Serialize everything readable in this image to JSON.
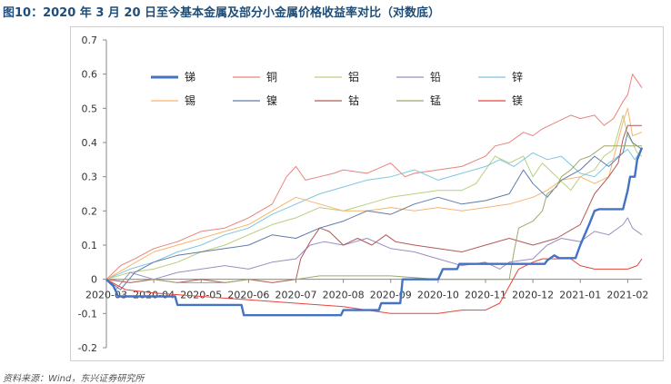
{
  "title": "图10：2020 年 3 月 20 日至今基本金属及部分小金属价格收益率对比（对数底）",
  "source": "资料来源：Wind，东兴证券研究所",
  "chart_data": {
    "type": "line",
    "ylim": [
      -0.2,
      0.7
    ],
    "yticks": [
      "-0.2",
      "-0.1",
      "0",
      "0.1",
      "0.2",
      "0.3",
      "0.4",
      "0.5",
      "0.6",
      "0.7"
    ],
    "xticks": [
      "2020-03",
      "2020-04",
      "2020-05",
      "2020-06",
      "2020-07",
      "2020-08",
      "2020-09",
      "2020-10",
      "2020-11",
      "2020-12",
      "2021-01",
      "2021-02"
    ],
    "x_months": [
      0,
      1,
      2,
      3,
      4,
      5,
      6,
      7,
      8,
      9,
      10,
      11
    ],
    "x_end": 11.3,
    "grid": false,
    "legend_position": "top-left",
    "series": [
      {
        "name": "锑",
        "color": "#4472c4",
        "width": 2.4,
        "points": [
          [
            0.0,
            0
          ],
          [
            0.15,
            -0.02
          ],
          [
            0.25,
            -0.05
          ],
          [
            1.45,
            -0.05
          ],
          [
            1.5,
            -0.075
          ],
          [
            2.85,
            -0.075
          ],
          [
            2.9,
            -0.105
          ],
          [
            4.95,
            -0.105
          ],
          [
            5.0,
            -0.09
          ],
          [
            5.75,
            -0.09
          ],
          [
            5.8,
            -0.07
          ],
          [
            6.2,
            -0.07
          ],
          [
            6.25,
            0
          ],
          [
            7.0,
            0
          ],
          [
            7.1,
            0.03
          ],
          [
            7.4,
            0.03
          ],
          [
            7.45,
            0.045
          ],
          [
            9.25,
            0.045
          ],
          [
            9.3,
            0.055
          ],
          [
            9.45,
            0.07
          ],
          [
            9.55,
            0.062
          ],
          [
            9.9,
            0.062
          ],
          [
            10.0,
            0.1
          ],
          [
            10.2,
            0.165
          ],
          [
            10.3,
            0.2
          ],
          [
            10.4,
            0.205
          ],
          [
            10.9,
            0.205
          ],
          [
            11.0,
            0.26
          ],
          [
            11.05,
            0.3
          ],
          [
            11.15,
            0.3
          ],
          [
            11.2,
            0.35
          ],
          [
            11.3,
            0.385
          ]
        ]
      },
      {
        "name": "铜",
        "color": "#e8837c",
        "width": 1,
        "points": [
          [
            0.0,
            0
          ],
          [
            0.3,
            0.04
          ],
          [
            0.6,
            0.06
          ],
          [
            1.0,
            0.09
          ],
          [
            1.5,
            0.11
          ],
          [
            2.0,
            0.14
          ],
          [
            2.5,
            0.15
          ],
          [
            3.0,
            0.18
          ],
          [
            3.5,
            0.22
          ],
          [
            3.8,
            0.3
          ],
          [
            4.0,
            0.33
          ],
          [
            4.2,
            0.29
          ],
          [
            4.5,
            0.3
          ],
          [
            4.8,
            0.31
          ],
          [
            5.0,
            0.32
          ],
          [
            5.5,
            0.31
          ],
          [
            6.0,
            0.34
          ],
          [
            6.3,
            0.3
          ],
          [
            6.5,
            0.31
          ],
          [
            7.0,
            0.32
          ],
          [
            7.5,
            0.33
          ],
          [
            8.0,
            0.36
          ],
          [
            8.2,
            0.39
          ],
          [
            8.5,
            0.4
          ],
          [
            8.8,
            0.43
          ],
          [
            9.0,
            0.42
          ],
          [
            9.2,
            0.44
          ],
          [
            9.5,
            0.46
          ],
          [
            9.8,
            0.48
          ],
          [
            10.0,
            0.47
          ],
          [
            10.3,
            0.48
          ],
          [
            10.5,
            0.45
          ],
          [
            10.7,
            0.47
          ],
          [
            10.9,
            0.52
          ],
          [
            11.0,
            0.54
          ],
          [
            11.1,
            0.6
          ],
          [
            11.2,
            0.58
          ],
          [
            11.3,
            0.56
          ]
        ]
      },
      {
        "name": "铝",
        "color": "#b7cf7e",
        "width": 1,
        "points": [
          [
            0.0,
            0
          ],
          [
            0.5,
            0.02
          ],
          [
            1.0,
            0.03
          ],
          [
            1.5,
            0.05
          ],
          [
            2.0,
            0.08
          ],
          [
            2.5,
            0.1
          ],
          [
            3.0,
            0.13
          ],
          [
            3.5,
            0.16
          ],
          [
            4.0,
            0.18
          ],
          [
            4.5,
            0.21
          ],
          [
            5.0,
            0.2
          ],
          [
            5.5,
            0.22
          ],
          [
            6.0,
            0.24
          ],
          [
            6.5,
            0.25
          ],
          [
            7.0,
            0.26
          ],
          [
            7.5,
            0.26
          ],
          [
            7.8,
            0.28
          ],
          [
            8.0,
            0.32
          ],
          [
            8.2,
            0.36
          ],
          [
            8.5,
            0.34
          ],
          [
            8.8,
            0.36
          ],
          [
            9.0,
            0.3
          ],
          [
            9.2,
            0.34
          ],
          [
            9.5,
            0.3
          ],
          [
            9.8,
            0.26
          ],
          [
            10.0,
            0.3
          ],
          [
            10.3,
            0.32
          ],
          [
            10.5,
            0.36
          ],
          [
            10.7,
            0.38
          ],
          [
            10.9,
            0.48
          ],
          [
            11.0,
            0.42
          ],
          [
            11.1,
            0.4
          ],
          [
            11.2,
            0.37
          ],
          [
            11.3,
            0.36
          ]
        ]
      },
      {
        "name": "铅",
        "color": "#9a8ec1",
        "width": 1,
        "points": [
          [
            0.0,
            0
          ],
          [
            0.2,
            -0.03
          ],
          [
            0.5,
            0.02
          ],
          [
            1.0,
            0.0
          ],
          [
            1.5,
            0.02
          ],
          [
            2.0,
            0.03
          ],
          [
            2.5,
            0.04
          ],
          [
            3.0,
            0.03
          ],
          [
            3.5,
            0.05
          ],
          [
            4.0,
            0.06
          ],
          [
            4.3,
            0.1
          ],
          [
            4.6,
            0.11
          ],
          [
            5.0,
            0.1
          ],
          [
            5.5,
            0.12
          ],
          [
            6.0,
            0.09
          ],
          [
            6.5,
            0.08
          ],
          [
            7.0,
            0.06
          ],
          [
            7.5,
            0.04
          ],
          [
            8.0,
            0.05
          ],
          [
            8.3,
            0.03
          ],
          [
            8.5,
            0.05
          ],
          [
            9.0,
            0.06
          ],
          [
            9.3,
            0.1
          ],
          [
            9.6,
            0.12
          ],
          [
            10.0,
            0.11
          ],
          [
            10.3,
            0.14
          ],
          [
            10.6,
            0.13
          ],
          [
            10.9,
            0.16
          ],
          [
            11.0,
            0.18
          ],
          [
            11.1,
            0.15
          ],
          [
            11.3,
            0.13
          ]
        ]
      },
      {
        "name": "锌",
        "color": "#7ec6e0",
        "width": 1,
        "points": [
          [
            0.0,
            0
          ],
          [
            0.5,
            0.03
          ],
          [
            1.0,
            0.05
          ],
          [
            1.5,
            0.08
          ],
          [
            2.0,
            0.1
          ],
          [
            2.5,
            0.13
          ],
          [
            3.0,
            0.15
          ],
          [
            3.5,
            0.19
          ],
          [
            4.0,
            0.22
          ],
          [
            4.5,
            0.25
          ],
          [
            5.0,
            0.27
          ],
          [
            5.5,
            0.29
          ],
          [
            6.0,
            0.3
          ],
          [
            6.5,
            0.32
          ],
          [
            7.0,
            0.29
          ],
          [
            7.5,
            0.31
          ],
          [
            8.0,
            0.33
          ],
          [
            8.3,
            0.35
          ],
          [
            8.6,
            0.33
          ],
          [
            9.0,
            0.37
          ],
          [
            9.3,
            0.35
          ],
          [
            9.6,
            0.36
          ],
          [
            10.0,
            0.31
          ],
          [
            10.3,
            0.3
          ],
          [
            10.6,
            0.34
          ],
          [
            10.9,
            0.37
          ],
          [
            11.0,
            0.38
          ],
          [
            11.15,
            0.35
          ],
          [
            11.3,
            0.38
          ]
        ]
      },
      {
        "name": "锡",
        "color": "#f9b46b",
        "width": 1,
        "points": [
          [
            0.0,
            0
          ],
          [
            0.5,
            0.04
          ],
          [
            1.0,
            0.08
          ],
          [
            1.5,
            0.1
          ],
          [
            2.0,
            0.12
          ],
          [
            2.5,
            0.14
          ],
          [
            3.0,
            0.16
          ],
          [
            3.5,
            0.2
          ],
          [
            4.0,
            0.24
          ],
          [
            4.5,
            0.22
          ],
          [
            5.0,
            0.2
          ],
          [
            5.5,
            0.2
          ],
          [
            6.0,
            0.21
          ],
          [
            6.5,
            0.2
          ],
          [
            7.0,
            0.21
          ],
          [
            7.5,
            0.2
          ],
          [
            8.0,
            0.21
          ],
          [
            8.5,
            0.22
          ],
          [
            9.0,
            0.24
          ],
          [
            9.3,
            0.26
          ],
          [
            9.6,
            0.29
          ],
          [
            10.0,
            0.3
          ],
          [
            10.3,
            0.28
          ],
          [
            10.6,
            0.3
          ],
          [
            10.9,
            0.46
          ],
          [
            11.0,
            0.5
          ],
          [
            11.1,
            0.42
          ],
          [
            11.3,
            0.43
          ]
        ]
      },
      {
        "name": "镍",
        "color": "#5f7ba6",
        "width": 1,
        "points": [
          [
            0.0,
            0
          ],
          [
            0.3,
            -0.03
          ],
          [
            0.6,
            0.02
          ],
          [
            1.0,
            0.05
          ],
          [
            1.5,
            0.07
          ],
          [
            2.0,
            0.08
          ],
          [
            2.5,
            0.09
          ],
          [
            3.0,
            0.1
          ],
          [
            3.5,
            0.13
          ],
          [
            4.0,
            0.12
          ],
          [
            4.5,
            0.15
          ],
          [
            5.0,
            0.17
          ],
          [
            5.5,
            0.2
          ],
          [
            6.0,
            0.19
          ],
          [
            6.5,
            0.22
          ],
          [
            7.0,
            0.24
          ],
          [
            7.5,
            0.22
          ],
          [
            8.0,
            0.23
          ],
          [
            8.5,
            0.25
          ],
          [
            8.8,
            0.32
          ],
          [
            9.0,
            0.28
          ],
          [
            9.3,
            0.24
          ],
          [
            9.6,
            0.29
          ],
          [
            10.0,
            0.32
          ],
          [
            10.3,
            0.36
          ],
          [
            10.6,
            0.33
          ],
          [
            10.9,
            0.37
          ],
          [
            11.0,
            0.43
          ],
          [
            11.1,
            0.4
          ],
          [
            11.3,
            0.38
          ]
        ]
      },
      {
        "name": "钴",
        "color": "#b05a58",
        "width": 1,
        "points": [
          [
            0.0,
            0
          ],
          [
            0.5,
            -0.01
          ],
          [
            1.0,
            0.0
          ],
          [
            1.5,
            -0.01
          ],
          [
            2.0,
            0.0
          ],
          [
            2.5,
            -0.01
          ],
          [
            3.0,
            0.0
          ],
          [
            3.5,
            -0.01
          ],
          [
            4.0,
            0.0
          ],
          [
            4.1,
            0.06
          ],
          [
            4.3,
            0.11
          ],
          [
            4.5,
            0.15
          ],
          [
            4.7,
            0.14
          ],
          [
            5.0,
            0.1
          ],
          [
            5.3,
            0.12
          ],
          [
            5.6,
            0.1
          ],
          [
            5.9,
            0.13
          ],
          [
            6.1,
            0.11
          ],
          [
            6.5,
            0.1
          ],
          [
            7.0,
            0.09
          ],
          [
            7.5,
            0.08
          ],
          [
            8.0,
            0.1
          ],
          [
            8.5,
            0.12
          ],
          [
            9.0,
            0.1
          ],
          [
            9.5,
            0.12
          ],
          [
            10.0,
            0.16
          ],
          [
            10.3,
            0.25
          ],
          [
            10.6,
            0.3
          ],
          [
            10.8,
            0.34
          ],
          [
            10.9,
            0.41
          ],
          [
            11.0,
            0.45
          ],
          [
            11.3,
            0.45
          ]
        ]
      },
      {
        "name": "锰",
        "color": "#9ea86b",
        "width": 1,
        "points": [
          [
            0.0,
            0
          ],
          [
            1.0,
            0
          ],
          [
            1.5,
            -0.01
          ],
          [
            2.5,
            -0.01
          ],
          [
            3.0,
            0
          ],
          [
            4.0,
            0
          ],
          [
            4.5,
            0.01
          ],
          [
            5.0,
            0.01
          ],
          [
            6.0,
            0.01
          ],
          [
            7.0,
            0
          ],
          [
            8.0,
            0
          ],
          [
            8.5,
            0
          ],
          [
            8.6,
            0.08
          ],
          [
            8.7,
            0.15
          ],
          [
            9.0,
            0.17
          ],
          [
            9.2,
            0.2
          ],
          [
            9.3,
            0.25
          ],
          [
            9.5,
            0.27
          ],
          [
            9.6,
            0.3
          ],
          [
            9.8,
            0.32
          ],
          [
            10.0,
            0.35
          ],
          [
            10.2,
            0.36
          ],
          [
            10.5,
            0.39
          ],
          [
            11.0,
            0.39
          ],
          [
            11.3,
            0.39
          ]
        ]
      },
      {
        "name": "镁",
        "color": "#e8443a",
        "width": 1,
        "points": [
          [
            0.0,
            0
          ],
          [
            0.4,
            -0.03
          ],
          [
            1.0,
            -0.04
          ],
          [
            2.0,
            -0.05
          ],
          [
            3.0,
            -0.06
          ],
          [
            4.0,
            -0.07
          ],
          [
            5.0,
            -0.08
          ],
          [
            5.5,
            -0.09
          ],
          [
            6.0,
            -0.1
          ],
          [
            6.5,
            -0.1
          ],
          [
            7.0,
            -0.1
          ],
          [
            7.5,
            -0.09
          ],
          [
            8.0,
            -0.09
          ],
          [
            8.3,
            -0.07
          ],
          [
            8.5,
            -0.02
          ],
          [
            8.7,
            0.03
          ],
          [
            9.0,
            0.05
          ],
          [
            9.2,
            0.06
          ],
          [
            9.8,
            0.06
          ],
          [
            10.0,
            0.04
          ],
          [
            10.3,
            0.03
          ],
          [
            10.6,
            0.03
          ],
          [
            11.0,
            0.03
          ],
          [
            11.2,
            0.04
          ],
          [
            11.3,
            0.06
          ]
        ]
      }
    ]
  }
}
